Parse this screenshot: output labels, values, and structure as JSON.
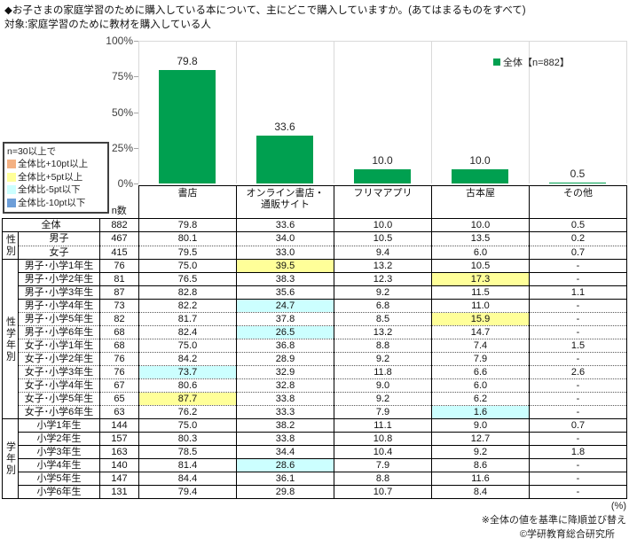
{
  "header": {
    "title": "◆お子さまの家庭学習のために購入している本について、主にどこで購入していますか。(あてはまるものをすべて)",
    "target": "対象:家庭学習のために教材を購入している人"
  },
  "chart_data": {
    "type": "bar",
    "title": "",
    "categories": [
      "書店",
      "オンライン書店・通販サイト",
      "フリマアプリ",
      "古本屋",
      "その他"
    ],
    "values": [
      79.8,
      33.6,
      10.0,
      10.0,
      0.5
    ],
    "unit": "%",
    "ylim": [
      0,
      100
    ],
    "yticks": [
      "100%",
      "75%",
      "50%",
      "25%",
      "0%"
    ],
    "legend": {
      "label": "全体【n=882】",
      "position": "top-right"
    },
    "bar_color": "#00A050",
    "grid": "vertical-category-separators"
  },
  "threshold_legend": {
    "condition": "n=30以上で",
    "items": [
      {
        "label": "全体比+10pt以上",
        "color": "#F4B183"
      },
      {
        "label": "全体比+5pt以上",
        "color": "#FFFF99"
      },
      {
        "label": "全体比-5pt以下",
        "color": "#CCFFFF"
      },
      {
        "label": "全体比-10pt以下",
        "color": "#6D9ED8"
      }
    ]
  },
  "table": {
    "n_label": "n数",
    "columns": [
      "書店",
      "オンライン書店・\n通販サイト",
      "フリマアプリ",
      "古本屋",
      "その他"
    ],
    "highlight_colors": {
      "yellow": "#FFFF99",
      "cyan": "#CCFFFF"
    },
    "sections": [
      {
        "group": "",
        "sep": "solid",
        "rows": [
          {
            "label": "全体",
            "n": "882",
            "values": [
              "79.8",
              "33.6",
              "10.0",
              "10.0",
              "0.5"
            ],
            "hl": [
              null,
              null,
              null,
              null,
              null
            ]
          }
        ]
      },
      {
        "group": "性別",
        "sep": "dotted",
        "rows": [
          {
            "label": "男子",
            "n": "467",
            "values": [
              "80.1",
              "34.0",
              "10.5",
              "13.5",
              "0.2"
            ],
            "hl": [
              null,
              null,
              null,
              null,
              null
            ]
          },
          {
            "label": "女子",
            "n": "415",
            "values": [
              "79.5",
              "33.0",
              "9.4",
              "6.0",
              "0.7"
            ],
            "hl": [
              null,
              null,
              null,
              null,
              null
            ]
          }
        ]
      },
      {
        "group": "性学年別",
        "sep": "dotted",
        "rows": [
          {
            "label": "男子･小学1年生",
            "n": "76",
            "values": [
              "75.0",
              "39.5",
              "13.2",
              "10.5",
              "-"
            ],
            "hl": [
              null,
              "yellow",
              null,
              null,
              null
            ]
          },
          {
            "label": "男子･小学2年生",
            "n": "81",
            "values": [
              "76.5",
              "38.3",
              "12.3",
              "17.3",
              "-"
            ],
            "hl": [
              null,
              null,
              null,
              "yellow",
              null
            ],
            "sep": "solid"
          },
          {
            "label": "男子･小学3年生",
            "n": "87",
            "values": [
              "82.8",
              "35.6",
              "9.2",
              "11.5",
              "1.1"
            ],
            "hl": [
              null,
              null,
              null,
              null,
              null
            ],
            "sep": "solid"
          },
          {
            "label": "男子･小学4年生",
            "n": "73",
            "values": [
              "82.2",
              "24.7",
              "6.8",
              "11.0",
              "-"
            ],
            "hl": [
              null,
              "cyan",
              null,
              null,
              null
            ],
            "sep": "solid"
          },
          {
            "label": "男子･小学5年生",
            "n": "82",
            "values": [
              "81.7",
              "37.8",
              "8.5",
              "15.9",
              "-"
            ],
            "hl": [
              null,
              null,
              null,
              "yellow",
              null
            ]
          },
          {
            "label": "男子･小学6年生",
            "n": "68",
            "values": [
              "82.4",
              "26.5",
              "13.2",
              "14.7",
              "-"
            ],
            "hl": [
              null,
              "cyan",
              null,
              null,
              null
            ]
          },
          {
            "label": "女子･小学1年生",
            "n": "68",
            "values": [
              "75.0",
              "36.8",
              "8.8",
              "7.4",
              "1.5"
            ],
            "hl": [
              null,
              null,
              null,
              null,
              null
            ]
          },
          {
            "label": "女子･小学2年生",
            "n": "76",
            "values": [
              "84.2",
              "28.9",
              "9.2",
              "7.9",
              "-"
            ],
            "hl": [
              null,
              null,
              null,
              null,
              null
            ]
          },
          {
            "label": "女子･小学3年生",
            "n": "76",
            "values": [
              "73.7",
              "32.9",
              "11.8",
              "6.6",
              "2.6"
            ],
            "hl": [
              "cyan",
              null,
              null,
              null,
              null
            ]
          },
          {
            "label": "女子･小学4年生",
            "n": "67",
            "values": [
              "80.6",
              "32.8",
              "9.0",
              "6.0",
              "-"
            ],
            "hl": [
              null,
              null,
              null,
              null,
              null
            ]
          },
          {
            "label": "女子･小学5年生",
            "n": "65",
            "values": [
              "87.7",
              "33.8",
              "9.2",
              "6.2",
              "-"
            ],
            "hl": [
              "yellow",
              null,
              null,
              null,
              null
            ]
          },
          {
            "label": "女子･小学6年生",
            "n": "63",
            "values": [
              "76.2",
              "33.3",
              "7.9",
              "1.6",
              "-"
            ],
            "hl": [
              null,
              null,
              null,
              "cyan",
              null
            ]
          }
        ]
      },
      {
        "group": "学年別",
        "sep": "solid",
        "rows": [
          {
            "label": "小学1年生",
            "n": "144",
            "values": [
              "75.0",
              "38.2",
              "11.1",
              "9.0",
              "0.7"
            ],
            "hl": [
              null,
              null,
              null,
              null,
              null
            ]
          },
          {
            "label": "小学2年生",
            "n": "157",
            "values": [
              "80.3",
              "33.8",
              "10.8",
              "12.7",
              "-"
            ],
            "hl": [
              null,
              null,
              null,
              null,
              null
            ]
          },
          {
            "label": "小学3年生",
            "n": "163",
            "values": [
              "78.5",
              "34.4",
              "10.4",
              "9.2",
              "1.8"
            ],
            "hl": [
              null,
              null,
              null,
              null,
              null
            ]
          },
          {
            "label": "小学4年生",
            "n": "140",
            "values": [
              "81.4",
              "28.6",
              "7.9",
              "8.6",
              "-"
            ],
            "hl": [
              null,
              "cyan",
              null,
              null,
              null
            ]
          },
          {
            "label": "小学5年生",
            "n": "147",
            "values": [
              "84.4",
              "36.1",
              "8.8",
              "11.6",
              "-"
            ],
            "hl": [
              null,
              null,
              null,
              null,
              null
            ]
          },
          {
            "label": "小学6年生",
            "n": "131",
            "values": [
              "79.4",
              "29.8",
              "10.7",
              "8.4",
              "-"
            ],
            "hl": [
              null,
              null,
              null,
              null,
              null
            ]
          }
        ]
      }
    ]
  },
  "footer": {
    "unit_note": "(%)",
    "sort_note": "※全体の値を基準に降順並び替え",
    "copyright": "©学研教育総合研究所"
  }
}
